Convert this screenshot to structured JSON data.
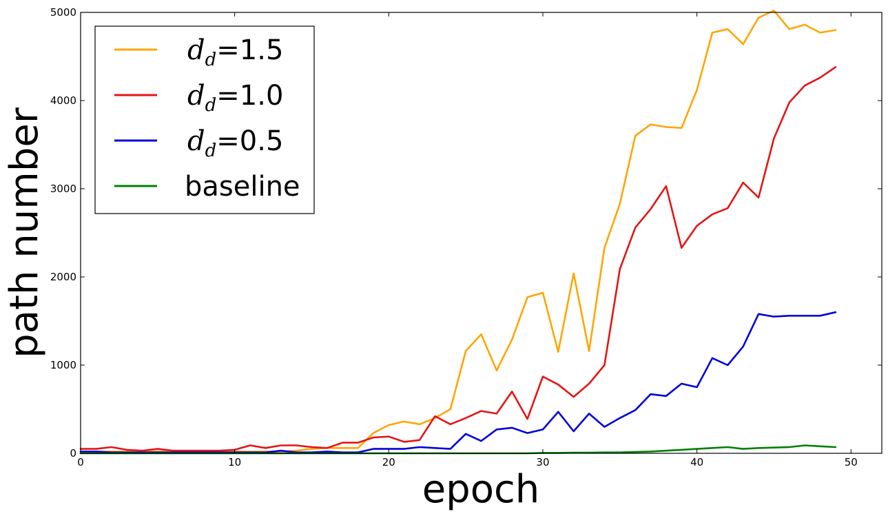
{
  "chart_data": {
    "type": "line",
    "xlabel": "epoch",
    "ylabel": "path number",
    "xlim": [
      0,
      52
    ],
    "ylim": [
      0,
      5000
    ],
    "x_ticks": [
      0,
      10,
      20,
      30,
      40,
      50
    ],
    "y_ticks": [
      0,
      1000,
      2000,
      3000,
      4000,
      5000
    ],
    "grid": false,
    "legend_position": "upper-left",
    "x": [
      0,
      1,
      2,
      3,
      4,
      5,
      6,
      7,
      8,
      9,
      10,
      11,
      12,
      13,
      14,
      15,
      16,
      17,
      18,
      19,
      20,
      21,
      22,
      23,
      24,
      25,
      26,
      27,
      28,
      29,
      30,
      31,
      32,
      33,
      34,
      35,
      36,
      37,
      38,
      39,
      40,
      41,
      42,
      43,
      44,
      45,
      46,
      47,
      48,
      49
    ],
    "series": [
      {
        "name_math": "d",
        "name_sub": "d",
        "name_value": "=1.5",
        "color": "#ffa500",
        "values": [
          20,
          20,
          20,
          20,
          20,
          20,
          20,
          20,
          20,
          20,
          20,
          20,
          20,
          20,
          30,
          50,
          60,
          60,
          60,
          230,
          320,
          360,
          330,
          400,
          500,
          1160,
          1350,
          940,
          1290,
          1770,
          1820,
          1150,
          2040,
          1160,
          2330,
          2830,
          3600,
          3730,
          3700,
          3690,
          4120,
          4770,
          4810,
          4640,
          4940,
          5020,
          4810,
          4860,
          4770,
          4800
        ]
      },
      {
        "name_math": "d",
        "name_sub": "d",
        "name_value": "=1.0",
        "color": "#e41414",
        "values": [
          50,
          50,
          70,
          40,
          30,
          50,
          30,
          30,
          30,
          30,
          40,
          90,
          60,
          90,
          90,
          70,
          60,
          120,
          120,
          180,
          190,
          130,
          150,
          420,
          330,
          400,
          480,
          450,
          700,
          390,
          870,
          780,
          640,
          790,
          1000,
          2090,
          2560,
          2770,
          3030,
          2330,
          2580,
          2710,
          2780,
          3070,
          2900,
          3570,
          3980,
          4170,
          4260,
          4380
        ]
      },
      {
        "name_math": "d",
        "name_sub": "d",
        "name_value": "=0.5",
        "color": "#0000dd",
        "values": [
          20,
          20,
          10,
          10,
          10,
          10,
          10,
          10,
          10,
          10,
          10,
          10,
          10,
          30,
          10,
          10,
          20,
          10,
          10,
          50,
          50,
          50,
          70,
          60,
          50,
          220,
          140,
          270,
          290,
          230,
          270,
          470,
          250,
          450,
          300,
          400,
          490,
          670,
          650,
          790,
          750,
          1080,
          1000,
          1210,
          1580,
          1550,
          1560,
          1560,
          1560,
          1600
        ]
      },
      {
        "name_text": "baseline",
        "color": "#008000",
        "values": [
          0,
          0,
          0,
          0,
          0,
          0,
          0,
          0,
          0,
          0,
          0,
          0,
          0,
          0,
          0,
          0,
          0,
          0,
          0,
          0,
          0,
          0,
          0,
          0,
          0,
          0,
          0,
          0,
          0,
          0,
          5,
          5,
          8,
          8,
          10,
          10,
          15,
          20,
          30,
          40,
          50,
          60,
          70,
          50,
          60,
          65,
          70,
          90,
          80,
          70
        ]
      }
    ]
  }
}
